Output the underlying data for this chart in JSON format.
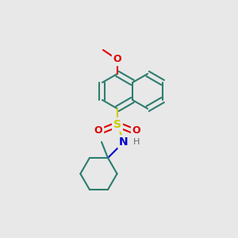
{
  "background_color": "#e8e8e8",
  "bond_color": "#2d7d6e",
  "bond_width": 1.5,
  "sulfur_color": "#cccc00",
  "oxygen_color": "#dd0000",
  "nitrogen_color": "#0000cc",
  "hydrogen_color": "#666666",
  "font_size_atom": 9,
  "figsize": [
    3.0,
    3.0
  ],
  "dpi": 100,
  "xlim": [
    0,
    300
  ],
  "ylim": [
    0,
    300
  ]
}
